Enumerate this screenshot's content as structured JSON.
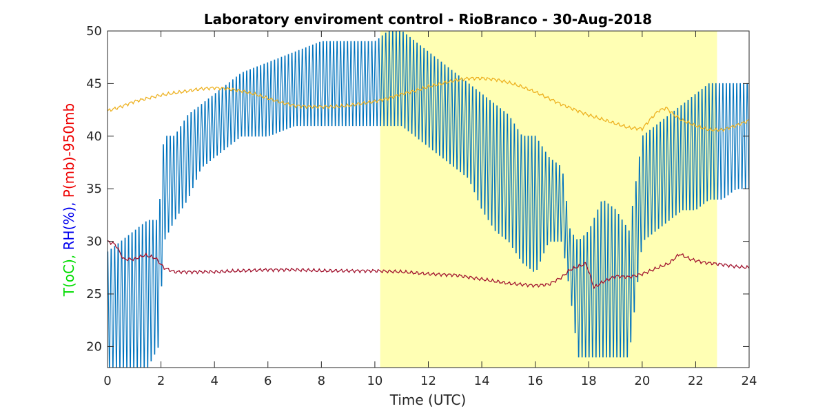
{
  "chart_data": {
    "type": "line",
    "title": "Laboratory enviroment control - RioBranco - 30-Aug-2018",
    "xlabel": "Time (UTC)",
    "ylabel_parts": [
      {
        "text": "T(oC), ",
        "color": "#00dd00"
      },
      {
        "text": "RH(%), ",
        "color": "#0000ee"
      },
      {
        "text": "P(mb)-950mb",
        "color": "#ee0000"
      }
    ],
    "xlim": [
      0,
      24
    ],
    "ylim": [
      18,
      50
    ],
    "xticks": [
      0,
      2,
      4,
      6,
      8,
      10,
      12,
      14,
      16,
      18,
      20,
      22,
      24
    ],
    "yticks": [
      20,
      25,
      30,
      35,
      40,
      45,
      50
    ],
    "highlight_region": {
      "x_start": 10.2,
      "x_end": 22.8,
      "color": "#ffffb4"
    },
    "series": [
      {
        "color": "#edb120",
        "x": [
          0,
          0.5,
          1,
          1.5,
          2,
          2.5,
          3,
          3.5,
          4,
          4.5,
          5,
          5.5,
          6,
          6.5,
          7,
          7.5,
          8,
          8.5,
          9,
          9.5,
          10,
          10.5,
          11,
          11.5,
          12,
          12.5,
          13,
          13.5,
          14,
          14.5,
          15,
          15.5,
          16,
          16.5,
          17,
          17.5,
          18,
          18.5,
          19,
          19.5,
          20,
          20.3,
          20.6,
          20.9,
          21.2,
          21.5,
          22,
          22.5,
          23,
          23.5,
          24
        ],
        "values": [
          42.4,
          42.8,
          43.3,
          43.6,
          43.9,
          44.1,
          44.3,
          44.5,
          44.6,
          44.5,
          44.3,
          44.0,
          43.6,
          43.2,
          42.9,
          42.8,
          42.8,
          42.8,
          42.9,
          43.1,
          43.3,
          43.6,
          44.0,
          44.3,
          44.7,
          45.0,
          45.3,
          45.5,
          45.5,
          45.4,
          45.1,
          44.7,
          44.2,
          43.6,
          43.0,
          42.5,
          42.0,
          41.6,
          41.2,
          40.8,
          40.7,
          41.6,
          42.4,
          42.7,
          42.0,
          41.5,
          41.0,
          40.6,
          40.6,
          41.0,
          41.5
        ]
      },
      {
        "color": "#a2142f",
        "x": [
          0,
          0.3,
          0.6,
          1,
          1.4,
          1.8,
          2.1,
          2.5,
          3,
          4,
          5,
          6,
          7,
          8,
          9,
          10,
          11,
          12,
          13,
          14,
          15,
          16,
          16.5,
          17,
          17.3,
          17.6,
          17.9,
          18.2,
          18.5,
          19,
          19.5,
          20,
          20.5,
          21,
          21.4,
          21.8,
          22.3,
          23,
          23.5,
          24
        ],
        "values": [
          30.0,
          29.7,
          28.3,
          28.3,
          28.7,
          28.4,
          27.5,
          27.1,
          27.1,
          27.1,
          27.2,
          27.3,
          27.3,
          27.2,
          27.2,
          27.2,
          27.1,
          26.9,
          26.8,
          26.4,
          26.0,
          25.8,
          25.9,
          26.6,
          27.3,
          27.6,
          27.9,
          25.6,
          26.1,
          26.7,
          26.6,
          26.9,
          27.4,
          27.9,
          28.8,
          28.3,
          28.0,
          27.8,
          27.6,
          27.5
        ]
      }
    ],
    "rh_series": {
      "color": "#0072bd",
      "envelope": {
        "x": [
          0.0,
          0.5,
          1.0,
          1.5,
          1.9,
          2.1,
          2.5,
          3.0,
          3.5,
          4.0,
          4.5,
          5.0,
          6.0,
          7.0,
          8.0,
          9.0,
          9.5,
          10.0,
          10.5,
          11.0,
          11.5,
          12.0,
          12.5,
          13.0,
          13.5,
          14.0,
          14.5,
          15.0,
          15.5,
          16.0,
          16.5,
          17.0,
          17.3,
          17.6,
          18.0,
          18.5,
          19.0,
          19.5,
          20.0,
          20.5,
          21.0,
          21.5,
          22.0,
          22.5,
          23.0,
          23.5,
          24.0
        ],
        "high": [
          29,
          30,
          31,
          32,
          32,
          40,
          40,
          42,
          43,
          44,
          45,
          46,
          47,
          48,
          49,
          49,
          49,
          49,
          50,
          50,
          49,
          48,
          47,
          46,
          45,
          44,
          43,
          42,
          40,
          40,
          38,
          37,
          31,
          30,
          31,
          34,
          33,
          31,
          40,
          41,
          42,
          43,
          44,
          45,
          45,
          45,
          45
        ],
        "low": [
          18,
          18,
          18,
          18,
          20,
          30,
          32,
          34,
          37,
          38,
          39,
          40,
          40,
          41,
          41,
          41,
          41,
          41,
          41,
          41,
          40,
          39,
          38,
          37,
          36,
          33,
          31,
          30,
          28,
          27,
          30,
          30,
          25,
          19,
          19,
          19,
          19,
          19,
          30,
          31,
          32,
          33,
          33,
          34,
          34,
          35,
          35
        ]
      },
      "cycle_period_hours": 0.13
    }
  }
}
